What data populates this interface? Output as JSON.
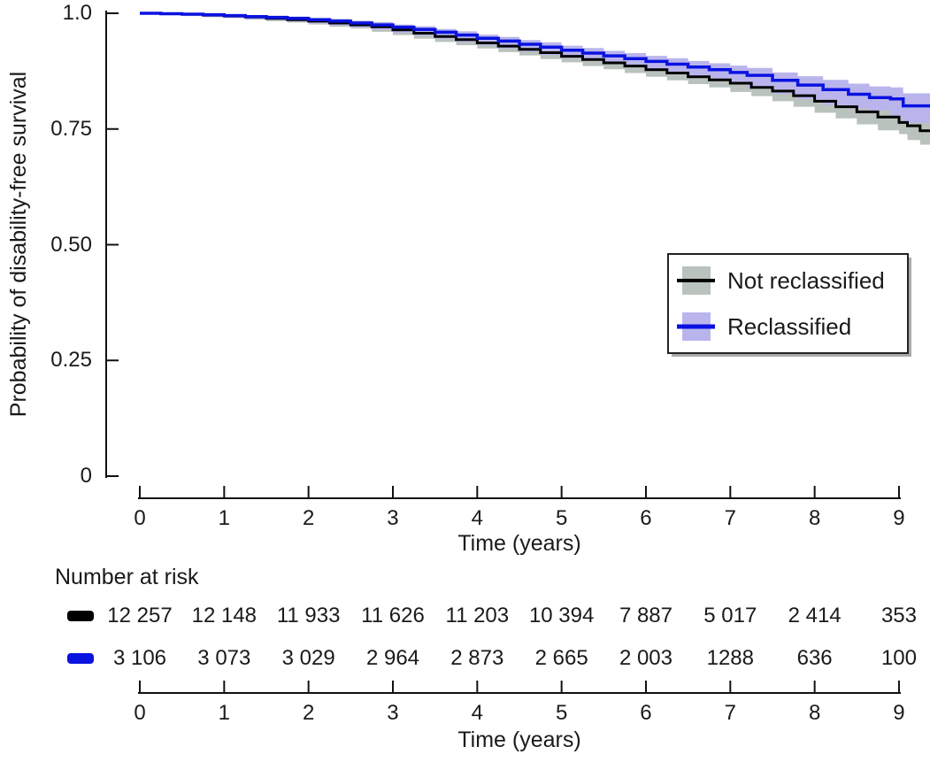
{
  "chart_data": {
    "type": "line",
    "subtype": "kaplan-meier-step-with-confidence-bands",
    "title": "",
    "xlabel": "Time (years)",
    "ylabel": "Probability of disability-free survival",
    "xlim": [
      0,
      9.4
    ],
    "ylim": [
      0,
      1.0
    ],
    "grid": false,
    "legend_position": "right-middle",
    "x_ticks": {
      "values": [
        0,
        1,
        2,
        3,
        4,
        5,
        6,
        7,
        8,
        9
      ],
      "labels": [
        "0",
        "1",
        "2",
        "3",
        "4",
        "5",
        "6",
        "7",
        "8",
        "9"
      ]
    },
    "y_ticks": {
      "values": [
        1.0,
        0.75,
        0.5,
        0.25,
        0
      ],
      "labels": [
        "1.0",
        "0.75",
        "0.50",
        "0.25",
        "0"
      ]
    },
    "axis_color": "#111111",
    "text_color": "#1a1a1a",
    "series": [
      {
        "name": "Not reclassified",
        "line_color": "#000000",
        "band_color": "#b9c2bd",
        "points": [
          [
            0,
            1.0,
            0
          ],
          [
            0.25,
            0.999,
            0.001
          ],
          [
            0.5,
            0.998,
            0.001
          ],
          [
            0.75,
            0.996,
            0.002
          ],
          [
            1,
            0.994,
            0.002
          ],
          [
            1.25,
            0.992,
            0.002
          ],
          [
            1.5,
            0.989,
            0.003
          ],
          [
            1.75,
            0.986,
            0.003
          ],
          [
            2,
            0.983,
            0.003
          ],
          [
            2.25,
            0.979,
            0.003
          ],
          [
            2.5,
            0.975,
            0.004
          ],
          [
            2.75,
            0.971,
            0.004
          ],
          [
            3,
            0.964,
            0.004
          ],
          [
            3.25,
            0.957,
            0.004
          ],
          [
            3.5,
            0.95,
            0.005
          ],
          [
            3.75,
            0.943,
            0.005
          ],
          [
            4,
            0.936,
            0.005
          ],
          [
            4.25,
            0.929,
            0.005
          ],
          [
            4.5,
            0.922,
            0.006
          ],
          [
            4.75,
            0.915,
            0.006
          ],
          [
            5,
            0.907,
            0.006
          ],
          [
            5.25,
            0.9,
            0.006
          ],
          [
            5.5,
            0.893,
            0.007
          ],
          [
            5.75,
            0.886,
            0.007
          ],
          [
            6,
            0.878,
            0.007
          ],
          [
            6.25,
            0.871,
            0.008
          ],
          [
            6.5,
            0.863,
            0.008
          ],
          [
            6.75,
            0.856,
            0.009
          ],
          [
            7,
            0.849,
            0.009
          ],
          [
            7.25,
            0.84,
            0.01
          ],
          [
            7.5,
            0.832,
            0.011
          ],
          [
            7.75,
            0.822,
            0.012
          ],
          [
            8,
            0.81,
            0.012
          ],
          [
            8.25,
            0.798,
            0.013
          ],
          [
            8.5,
            0.787,
            0.014
          ],
          [
            8.75,
            0.776,
            0.016
          ],
          [
            9,
            0.764,
            0.017
          ],
          [
            9.1,
            0.757,
            0.018
          ],
          [
            9.25,
            0.746,
            0.02
          ],
          [
            9.4,
            0.738,
            0.022
          ]
        ]
      },
      {
        "name": "Reclassified",
        "line_color": "#0a12e0",
        "band_color": "#b9b5ec",
        "points": [
          [
            0,
            1.0,
            0
          ],
          [
            0.25,
            0.999,
            0.001
          ],
          [
            0.5,
            0.998,
            0.002
          ],
          [
            0.75,
            0.997,
            0.002
          ],
          [
            1,
            0.995,
            0.003
          ],
          [
            1.25,
            0.993,
            0.003
          ],
          [
            1.5,
            0.991,
            0.004
          ],
          [
            1.75,
            0.989,
            0.004
          ],
          [
            2,
            0.986,
            0.004
          ],
          [
            2.25,
            0.983,
            0.005
          ],
          [
            2.5,
            0.979,
            0.005
          ],
          [
            2.75,
            0.975,
            0.006
          ],
          [
            3,
            0.97,
            0.006
          ],
          [
            3.25,
            0.965,
            0.007
          ],
          [
            3.5,
            0.959,
            0.007
          ],
          [
            3.75,
            0.953,
            0.008
          ],
          [
            4,
            0.946,
            0.008
          ],
          [
            4.25,
            0.94,
            0.009
          ],
          [
            4.5,
            0.933,
            0.009
          ],
          [
            4.75,
            0.927,
            0.01
          ],
          [
            5,
            0.92,
            0.01
          ],
          [
            5.25,
            0.914,
            0.011
          ],
          [
            5.5,
            0.908,
            0.011
          ],
          [
            5.75,
            0.902,
            0.012
          ],
          [
            6,
            0.896,
            0.012
          ],
          [
            6.25,
            0.89,
            0.013
          ],
          [
            6.5,
            0.884,
            0.013
          ],
          [
            6.75,
            0.878,
            0.014
          ],
          [
            7,
            0.872,
            0.015
          ],
          [
            7.2,
            0.866,
            0.016
          ],
          [
            7.5,
            0.855,
            0.017
          ],
          [
            7.8,
            0.845,
            0.019
          ],
          [
            8.1,
            0.835,
            0.021
          ],
          [
            8.4,
            0.825,
            0.023
          ],
          [
            8.65,
            0.818,
            0.024
          ],
          [
            8.9,
            0.815,
            0.025
          ],
          [
            9.05,
            0.8,
            0.027
          ],
          [
            9.4,
            0.799,
            0.036
          ]
        ]
      }
    ],
    "number_at_risk": {
      "title": "Number at risk",
      "rows": [
        {
          "series": "Not reclassified",
          "color": "#000000",
          "values": [
            "12 257",
            "12 148",
            "11 933",
            "11 626",
            "11 203",
            "10 394",
            "7 887",
            "5 017",
            "2 414",
            "353"
          ]
        },
        {
          "series": "Reclassified",
          "color": "#0a12e0",
          "values": [
            "3 106",
            "3 073",
            "3 029",
            "2 964",
            "2 873",
            "2 665",
            "2 003",
            "1288",
            "636",
            "100"
          ]
        }
      ]
    },
    "bottom_axis": {
      "title": "Time (years)",
      "labels": [
        "0",
        "1",
        "2",
        "3",
        "4",
        "5",
        "6",
        "7",
        "8",
        "9"
      ]
    }
  }
}
